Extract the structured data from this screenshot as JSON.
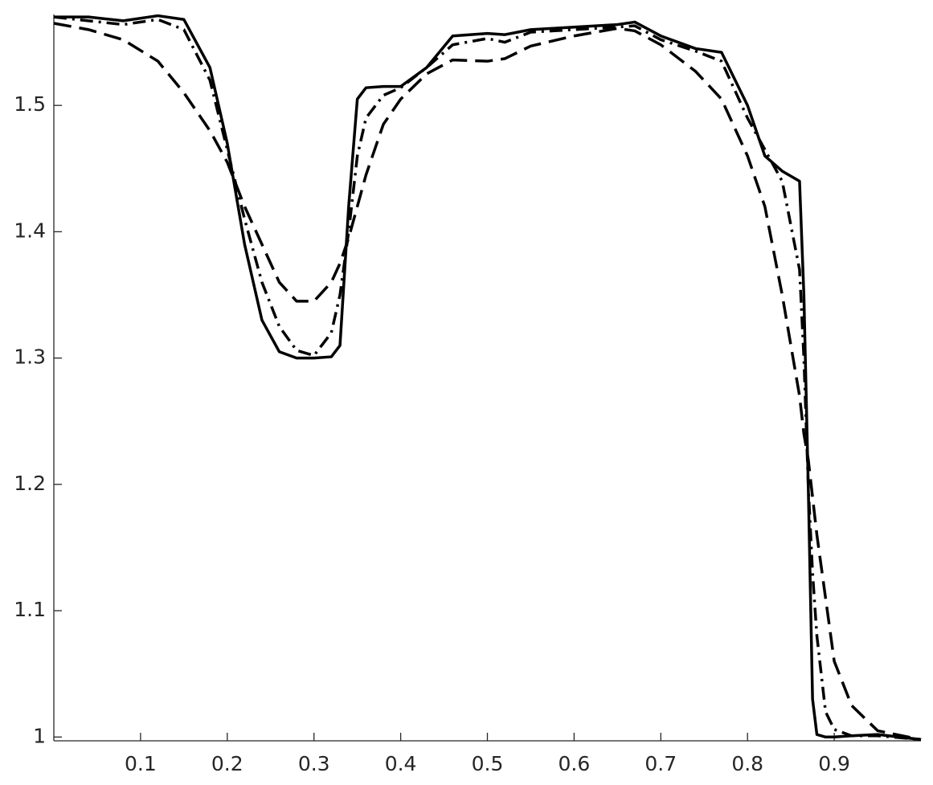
{
  "chart_data": {
    "type": "line",
    "x": [
      0,
      0.04,
      0.08,
      0.12,
      0.15,
      0.18,
      0.2,
      0.22,
      0.24,
      0.26,
      0.28,
      0.3,
      0.32,
      0.33,
      0.34,
      0.35,
      0.36,
      0.38,
      0.4,
      0.43,
      0.46,
      0.5,
      0.52,
      0.55,
      0.6,
      0.65,
      0.67,
      0.7,
      0.74,
      0.77,
      0.8,
      0.82,
      0.84,
      0.86,
      0.865,
      0.87,
      0.875,
      0.88,
      0.89,
      0.9,
      0.92,
      0.95,
      1.0
    ],
    "series": [
      {
        "color": "#000000",
        "dash": "solid",
        "values": [
          1.57,
          1.57,
          1.567,
          1.571,
          1.568,
          1.53,
          1.47,
          1.39,
          1.33,
          1.305,
          1.3,
          1.3,
          1.301,
          1.31,
          1.42,
          1.505,
          1.514,
          1.515,
          1.515,
          1.53,
          1.555,
          1.557,
          1.556,
          1.56,
          1.562,
          1.564,
          1.566,
          1.555,
          1.545,
          1.542,
          1.5,
          1.46,
          1.448,
          1.44,
          1.35,
          1.2,
          1.03,
          1.002,
          1.0,
          1.0,
          1.001,
          1.002,
          0.998
        ]
      },
      {
        "color": "#000000",
        "dash": "dashdot",
        "values": [
          1.57,
          1.567,
          1.564,
          1.568,
          1.56,
          1.52,
          1.465,
          1.41,
          1.36,
          1.325,
          1.306,
          1.302,
          1.32,
          1.35,
          1.4,
          1.46,
          1.49,
          1.508,
          1.514,
          1.53,
          1.548,
          1.553,
          1.55,
          1.558,
          1.56,
          1.562,
          1.563,
          1.552,
          1.543,
          1.535,
          1.49,
          1.465,
          1.44,
          1.37,
          1.3,
          1.2,
          1.13,
          1.08,
          1.02,
          1.006,
          1.001,
          1.001,
          0.998
        ]
      },
      {
        "color": "#000000",
        "dash": "dashed",
        "values": [
          1.565,
          1.56,
          1.552,
          1.535,
          1.51,
          1.48,
          1.455,
          1.42,
          1.39,
          1.36,
          1.345,
          1.345,
          1.36,
          1.375,
          1.395,
          1.42,
          1.445,
          1.485,
          1.505,
          1.525,
          1.536,
          1.535,
          1.537,
          1.547,
          1.555,
          1.561,
          1.559,
          1.548,
          1.527,
          1.505,
          1.46,
          1.42,
          1.35,
          1.27,
          1.24,
          1.22,
          1.19,
          1.16,
          1.11,
          1.06,
          1.025,
          1.005,
          0.998
        ]
      }
    ],
    "xlim": [
      0,
      1
    ],
    "ylim": [
      0.997,
      1.572
    ],
    "xticks": [
      0.1,
      0.2,
      0.3,
      0.4,
      0.5,
      0.6,
      0.7,
      0.8,
      0.9
    ],
    "yticks": [
      1,
      1.1,
      1.2,
      1.3,
      1.4,
      1.5
    ],
    "grid": false
  }
}
